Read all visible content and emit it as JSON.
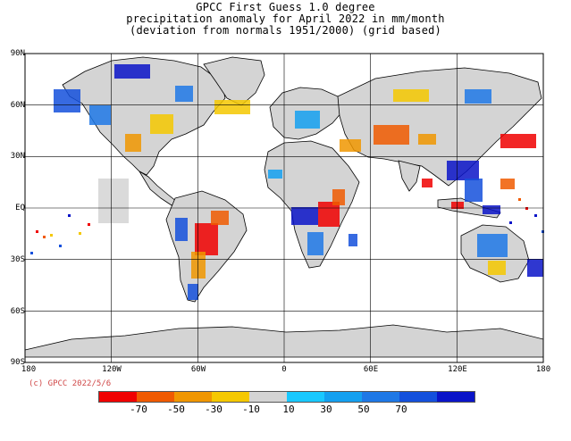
{
  "title": {
    "line1": "GPCC First Guess 1.0 degree",
    "line2": "precipitation anomaly for April  2022 in mm/month",
    "line3": "(deviation from normals 1951/2000) (grid based)"
  },
  "credit": "(c) GPCC 2022/5/6",
  "axes": {
    "lat_labels": [
      "90N",
      "60N",
      "30N",
      "EQ",
      "30S",
      "60S",
      "90S"
    ],
    "lon_labels": [
      "180",
      "120W",
      "60W",
      "0",
      "60E",
      "120E",
      "180"
    ]
  },
  "legend": {
    "colors": [
      "#f00000",
      "#f05a00",
      "#f09600",
      "#f5c800",
      "#d4d4d4",
      "#19c8ff",
      "#14a0f0",
      "#1e78e6",
      "#1450dc",
      "#0a14c8"
    ],
    "labels": [
      "-70",
      "-50",
      "-30",
      "-10",
      "10",
      "30",
      "50",
      "70"
    ]
  },
  "map": {
    "ocean_color": "#ffffff",
    "land_color": "#d4d4d4",
    "grid_lines": true,
    "projection": "equirectangular"
  }
}
